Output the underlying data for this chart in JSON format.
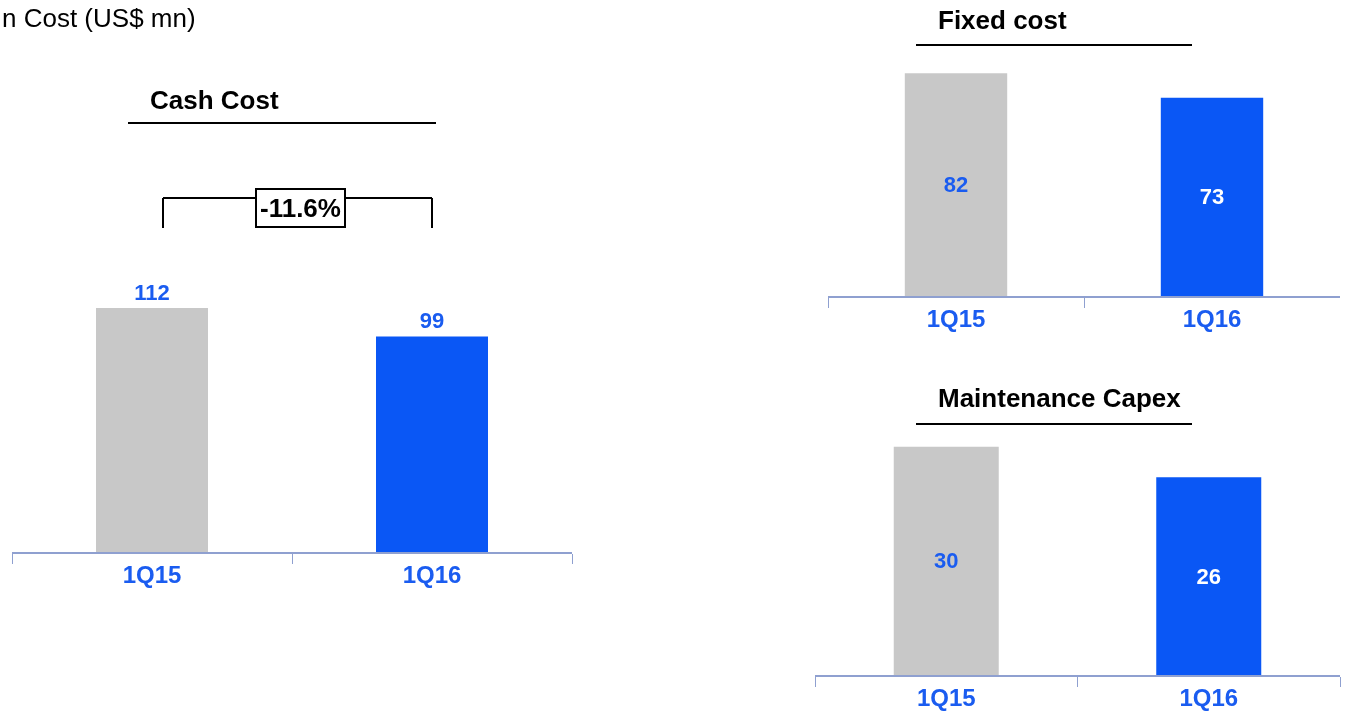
{
  "chart_data": [
    {
      "type": "bar",
      "title": "Cash Cost",
      "categories": [
        "1Q15",
        "1Q16"
      ],
      "values": [
        112,
        99
      ],
      "colors": [
        "#c8c8c8",
        "#0a57f5"
      ],
      "data_labels": true,
      "annotations": [
        "n Cost (US$ mn)",
        "-11.6%"
      ]
    },
    {
      "type": "bar",
      "title": "Fixed cost",
      "categories": [
        "1Q15",
        "1Q16"
      ],
      "values": [
        82,
        73
      ],
      "colors": [
        "#c8c8c8",
        "#0a57f5"
      ],
      "data_labels": true
    },
    {
      "type": "bar",
      "title": "Maintenance Capex",
      "categories": [
        "1Q15",
        "1Q16"
      ],
      "values": [
        30,
        26
      ],
      "colors": [
        "#c8c8c8",
        "#0a57f5"
      ],
      "data_labels": true
    }
  ]
}
